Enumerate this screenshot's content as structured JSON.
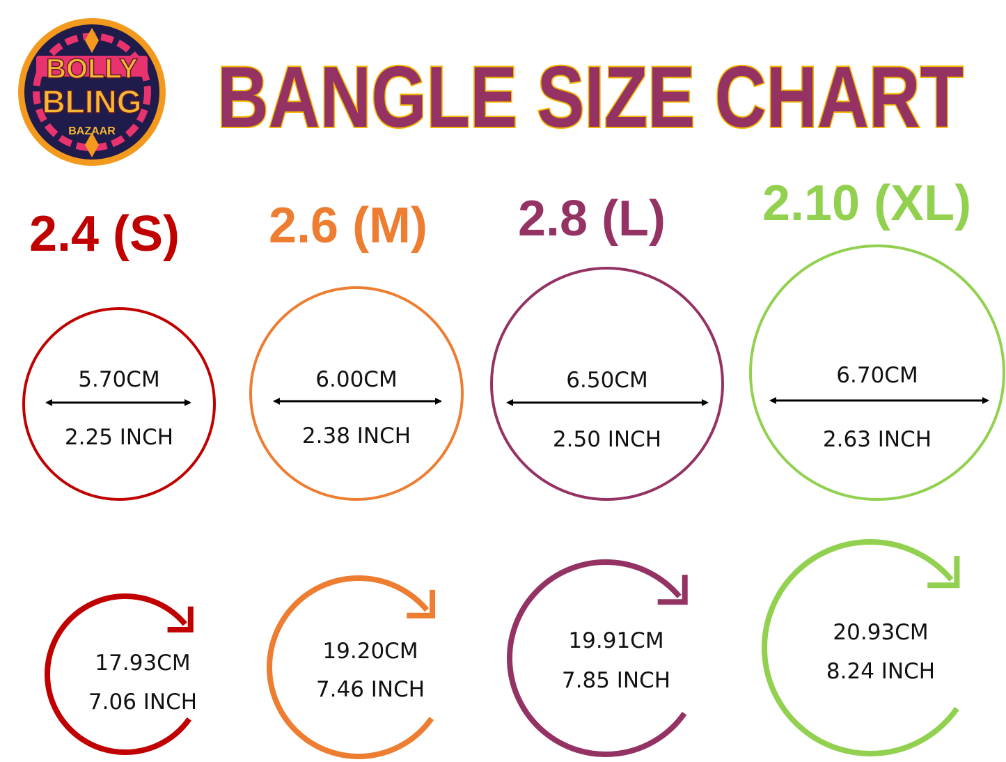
{
  "logo": {
    "line1": "BOLLY",
    "line2": "BLING",
    "line3": "BAZAAR"
  },
  "title": "BANGLE SIZE CHART",
  "colors": {
    "title_fill": "#933263",
    "title_outline": "#f5b800",
    "logo_ring": "#f39a1e",
    "logo_bg": "#1f1b4a",
    "logo_pink": "#e8336f"
  },
  "sizes": [
    {
      "label": "2.4 (S)",
      "color": "#c00000",
      "diameter_cm": "5.70CM",
      "diameter_inch": "2.25 INCH",
      "circumference_cm": "17.93CM",
      "circumference_inch": "7.06 INCH"
    },
    {
      "label": "2.6 (M)",
      "color": "#ed7d31",
      "diameter_cm": "6.00CM",
      "diameter_inch": "2.38 INCH",
      "circumference_cm": "19.20CM",
      "circumference_inch": "7.46 INCH"
    },
    {
      "label": "2.8 (L)",
      "color": "#933263",
      "diameter_cm": "6.50CM",
      "diameter_inch": "2.50 INCH",
      "circumference_cm": "19.91CM",
      "circumference_inch": "7.85 INCH"
    },
    {
      "label": "2.10 (XL)",
      "color": "#92d050",
      "diameter_cm": "6.70CM",
      "diameter_inch": "2.63 INCH",
      "circumference_cm": "20.93CM",
      "circumference_inch": "8.24 INCH"
    }
  ]
}
